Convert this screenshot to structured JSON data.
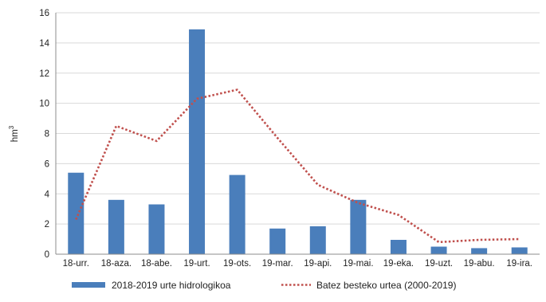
{
  "chart_data": {
    "type": "bar",
    "ylabel": "hm",
    "ylabel_sup": "3",
    "ylim": [
      0,
      16
    ],
    "yticks": [
      0,
      2,
      4,
      6,
      8,
      10,
      12,
      14,
      16
    ],
    "grid": "horizontal",
    "legend_position": "bottom",
    "categories": [
      "18-urr.",
      "18-aza.",
      "18-abe.",
      "19-urt.",
      "19-ots.",
      "19-mar.",
      "19-api.",
      "19-mai.",
      "19-eka.",
      "19-uzt.",
      "19-abu.",
      "19-ira."
    ],
    "series": [
      {
        "name": "2018-2019 urte hidrologikoa",
        "type": "bar",
        "color": "#4a7ebb",
        "values": [
          5.4,
          3.6,
          3.3,
          14.9,
          5.25,
          1.7,
          1.85,
          3.6,
          0.95,
          0.5,
          0.4,
          0.45
        ]
      },
      {
        "name": "Batez besteko urtea (2000-2019)",
        "type": "line",
        "style": "dotted",
        "color": "#c0504d",
        "values": [
          2.3,
          8.5,
          7.5,
          10.3,
          10.9,
          7.7,
          4.6,
          3.4,
          2.6,
          0.8,
          0.95,
          1.0
        ]
      }
    ]
  }
}
